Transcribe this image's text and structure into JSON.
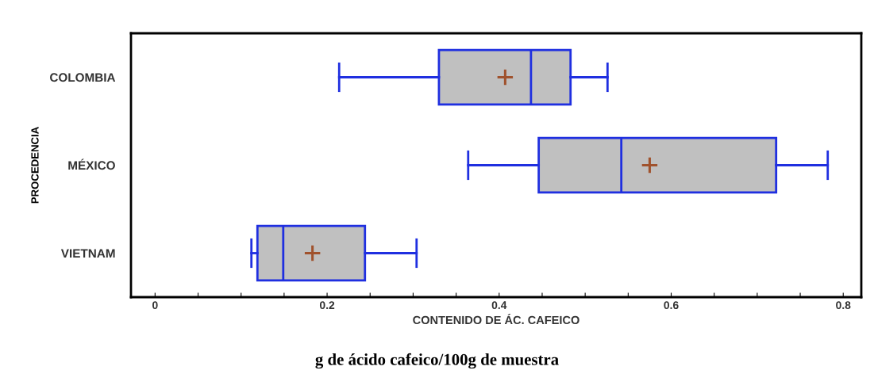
{
  "chart_data": {
    "type": "box",
    "orientation": "horizontal",
    "xlabel": "CONTENIDO DE ÁC. CAFEICO",
    "ylabel": "PROCEDENCIA",
    "categories": [
      "COLOMBIA",
      "MÉXICO",
      "VIETNAM"
    ],
    "boxes": [
      {
        "low": 0.214,
        "q1": 0.33,
        "median": 0.437,
        "q3": 0.483,
        "high": 0.526,
        "mean": 0.407
      },
      {
        "low": 0.364,
        "q1": 0.446,
        "median": 0.542,
        "q3": 0.722,
        "high": 0.782,
        "mean": 0.575
      },
      {
        "low": 0.112,
        "q1": 0.119,
        "median": 0.149,
        "q3": 0.244,
        "high": 0.304,
        "mean": 0.183
      }
    ],
    "color": "#c0c0c0",
    "xlim": [
      -0.028,
      0.821
    ],
    "xticks": [
      0,
      {
        "value": 0.05,
        "label": null
      },
      {
        "value": 0.1,
        "label": null
      },
      {
        "value": 0.15,
        "label": null
      },
      0.2,
      {
        "value": 0.25,
        "label": null
      },
      {
        "value": 0.3,
        "label": null
      },
      {
        "value": 0.35,
        "label": null
      },
      0.4,
      {
        "value": 0.45,
        "label": null
      },
      {
        "value": 0.5,
        "label": null
      },
      {
        "value": 0.55,
        "label": null
      },
      0.6,
      {
        "value": 0.65,
        "label": null
      },
      {
        "value": 0.7,
        "label": null
      },
      {
        "value": 0.75,
        "label": null
      },
      0.8
    ],
    "grid": false,
    "annotations": [
      "g de ácido cafeico/100g de muestra"
    ]
  }
}
